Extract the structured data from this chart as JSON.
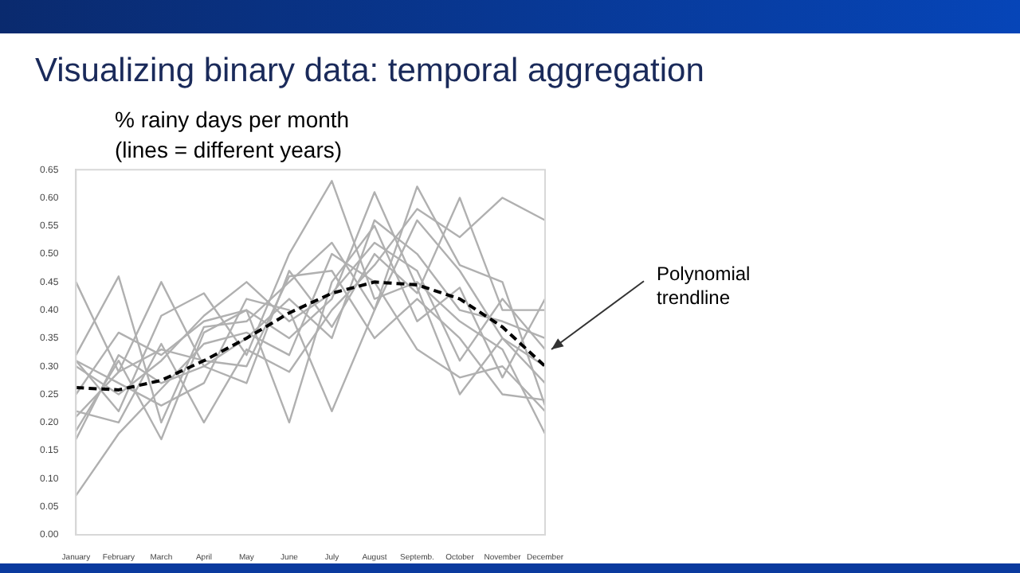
{
  "chart_data": {
    "type": "line",
    "title": "Visualizing binary data: temporal aggregation",
    "subtitle": "% rainy days per month\n(lines = different years)",
    "categories": [
      "January",
      "February",
      "March",
      "April",
      "May",
      "June",
      "July",
      "August",
      "Septemb.",
      "October",
      "November",
      "December"
    ],
    "series": [
      {
        "color": "#b0b0b0",
        "values": [
          0.45,
          0.29,
          0.45,
          0.3,
          0.35,
          0.42,
          0.35,
          0.56,
          0.5,
          0.4,
          0.38,
          0.35
        ]
      },
      {
        "color": "#b0b0b0",
        "values": [
          0.32,
          0.46,
          0.2,
          0.37,
          0.38,
          0.45,
          0.52,
          0.4,
          0.62,
          0.48,
          0.45,
          0.23
        ]
      },
      {
        "color": "#b0b0b0",
        "values": [
          0.31,
          0.22,
          0.39,
          0.43,
          0.32,
          0.5,
          0.63,
          0.42,
          0.45,
          0.38,
          0.33,
          0.18
        ]
      },
      {
        "color": "#b0b0b0",
        "values": [
          0.22,
          0.2,
          0.34,
          0.2,
          0.33,
          0.29,
          0.4,
          0.48,
          0.58,
          0.53,
          0.6,
          0.56
        ]
      },
      {
        "color": "#b0b0b0",
        "values": [
          0.185,
          0.31,
          0.17,
          0.36,
          0.4,
          0.35,
          0.42,
          0.61,
          0.44,
          0.25,
          0.35,
          0.3
        ]
      },
      {
        "color": "#b0b0b0",
        "values": [
          0.17,
          0.32,
          0.27,
          0.3,
          0.27,
          0.47,
          0.37,
          0.5,
          0.43,
          0.6,
          0.4,
          0.4
        ]
      },
      {
        "color": "#b0b0b0",
        "values": [
          0.07,
          0.18,
          0.26,
          0.34,
          0.36,
          0.32,
          0.5,
          0.45,
          0.33,
          0.28,
          0.3,
          0.22
        ]
      },
      {
        "color": "#b0b0b0",
        "values": [
          0.25,
          0.36,
          0.32,
          0.38,
          0.4,
          0.2,
          0.45,
          0.55,
          0.38,
          0.44,
          0.28,
          0.42
        ]
      },
      {
        "color": "#b0b0b0",
        "values": [
          0.31,
          0.27,
          0.23,
          0.27,
          0.42,
          0.4,
          0.22,
          0.4,
          0.56,
          0.47,
          0.35,
          0.27
        ]
      },
      {
        "color": "#b0b0b0",
        "values": [
          0.21,
          0.29,
          0.33,
          0.31,
          0.3,
          0.46,
          0.47,
          0.35,
          0.42,
          0.35,
          0.25,
          0.24
        ]
      },
      {
        "color": "#b0b0b0",
        "values": [
          0.3,
          0.25,
          0.31,
          0.39,
          0.45,
          0.38,
          0.43,
          0.52,
          0.47,
          0.31,
          0.42,
          0.33
        ]
      },
      {
        "color": "#000000",
        "line_style": "dashed",
        "values": [
          0.262,
          0.258,
          0.275,
          0.31,
          0.35,
          0.395,
          0.43,
          0.45,
          0.445,
          0.42,
          0.37,
          0.3
        ]
      }
    ],
    "ylim": [
      0,
      0.65
    ],
    "yticks": [
      {
        "value": 0,
        "label": "0.00"
      },
      {
        "value": 0.05,
        "label": "0.05"
      },
      {
        "value": 0.1,
        "label": "0.10"
      },
      {
        "value": 0.15,
        "label": "0.15"
      },
      {
        "value": 0.2,
        "label": "0.20"
      },
      {
        "value": 0.25,
        "label": "0.25"
      },
      {
        "value": 0.3,
        "label": "0.30"
      },
      {
        "value": 0.35,
        "label": "0.35"
      },
      {
        "value": 0.4,
        "label": "0.40"
      },
      {
        "value": 0.45,
        "label": "0.45"
      },
      {
        "value": 0.5,
        "label": "0.50"
      },
      {
        "value": 0.55,
        "label": "0.55"
      },
      {
        "value": 0.6,
        "label": "0.60"
      },
      {
        "value": 0.65,
        "label": "0.65"
      }
    ],
    "annotations": [
      {
        "text": "Polynomial\ntrendline",
        "x": "December",
        "y": 0.33
      }
    ],
    "grid": false,
    "legend": false,
    "marker": "none"
  }
}
